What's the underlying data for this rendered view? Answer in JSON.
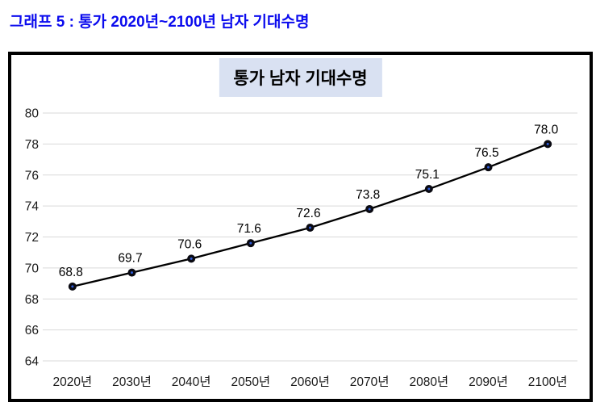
{
  "header": {
    "title": "그래프 5 : 통가 2020년~2100년 남자 기대수명",
    "color": "#0b0bee"
  },
  "chart": {
    "title": "통가 남자 기대수명",
    "title_bg": "#d9e1f2",
    "border_color": "#000000"
  },
  "chart_data": {
    "type": "line",
    "title": "통가 남자 기대수명",
    "categories": [
      "2020년",
      "2030년",
      "2040년",
      "2050년",
      "2060년",
      "2070년",
      "2080년",
      "2090년",
      "2100년"
    ],
    "values": [
      68.8,
      69.7,
      70.6,
      71.6,
      72.6,
      73.8,
      75.1,
      76.5,
      78.0
    ],
    "data_labels": [
      "68.8",
      "69.7",
      "70.6",
      "71.6",
      "72.6",
      "73.8",
      "75.1",
      "76.5",
      "78.0"
    ],
    "xlabel": "",
    "ylabel": "",
    "ylim": [
      64,
      80
    ],
    "yticks": [
      64,
      66,
      68,
      70,
      72,
      74,
      76,
      78,
      80
    ],
    "grid": true,
    "legend_position": "none",
    "line_color": "#000000",
    "marker_fill": "#0a0a12",
    "marker_center_color": "#2e5bd7",
    "gridline_color": "#d9d9d9",
    "axis_label_color": "#1a1a1a",
    "data_label_color": "#000000"
  }
}
